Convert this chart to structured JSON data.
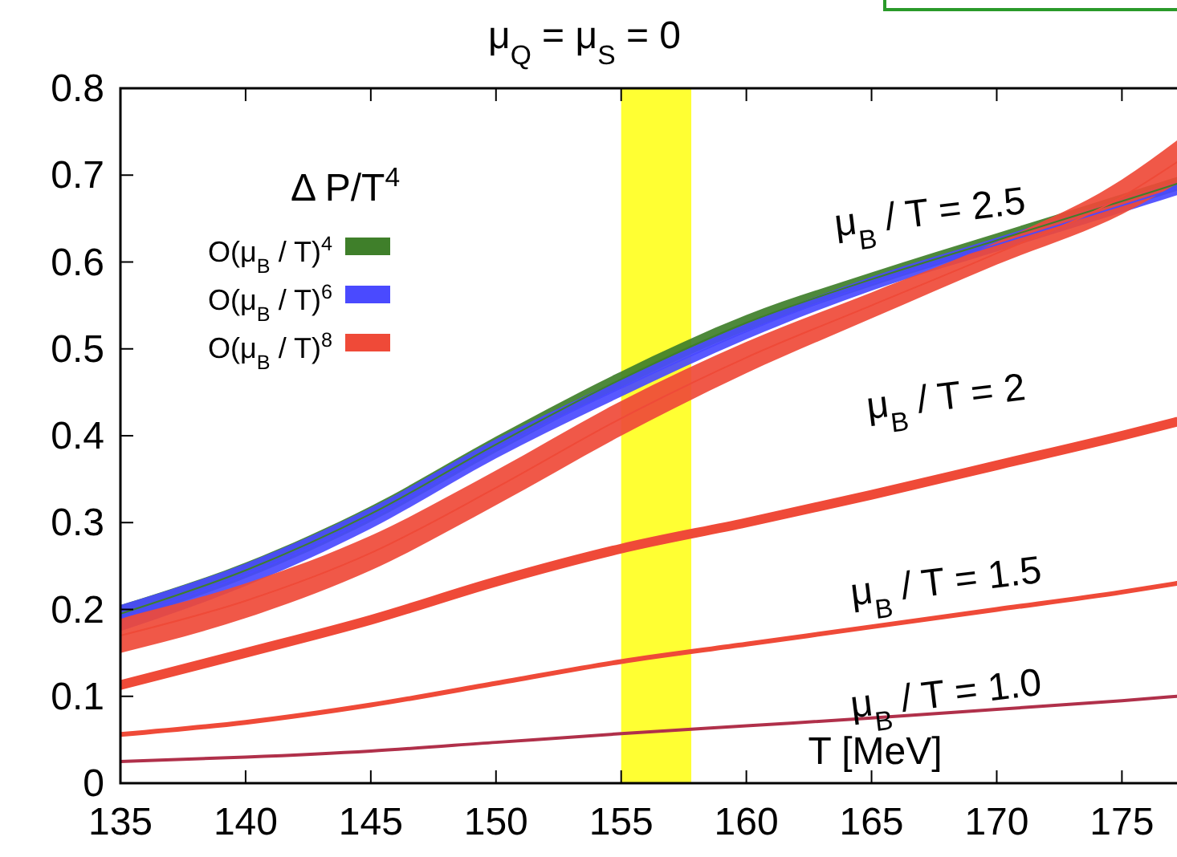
{
  "chart_data": {
    "type": "line",
    "title": "μ$_{Q}$ = μ$_{S}$ = 0",
    "xlabel": "T [MeV]",
    "legend_title": "Δ P/T$^{4}$",
    "legend": "top left",
    "grid": false,
    "marker": "none",
    "line_style": "solid",
    "x": [
      135,
      140,
      145,
      150,
      155,
      160,
      165,
      170,
      175,
      177.2
    ],
    "xlim": [
      135,
      177.2
    ],
    "xticks": [
      135,
      140,
      145,
      150,
      155,
      160,
      165,
      170,
      175
    ],
    "ylim": [
      0,
      0.8
    ],
    "yticks": [
      0,
      0.1,
      0.2,
      0.3,
      0.4,
      0.5,
      0.6,
      0.7,
      0.8
    ],
    "bands": [
      {
        "axis": "x",
        "from": 155,
        "to": 157.8,
        "color": "#ffff33"
      }
    ],
    "series": [
      {
        "name": "O(μ$_{B}$ / T)$^{4}$",
        "color": "#3f7f2a",
        "values": [
          0.195,
          0.245,
          0.31,
          0.39,
          0.465,
          0.53,
          0.58,
          0.625,
          0.67,
          0.69
        ],
        "lower": [
          0.185,
          0.236,
          0.301,
          0.381,
          0.456,
          0.521,
          0.572,
          0.617,
          0.662,
          0.682
        ],
        "upper": [
          0.205,
          0.254,
          0.319,
          0.399,
          0.474,
          0.539,
          0.588,
          0.633,
          0.678,
          0.698
        ]
      },
      {
        "name": "O(μ$_{B}$ / T)$^{6}$",
        "color": "#4a4aff",
        "values": [
          0.19,
          0.24,
          0.305,
          0.385,
          0.455,
          0.52,
          0.575,
          0.62,
          0.665,
          0.685
        ],
        "lower": [
          0.175,
          0.227,
          0.293,
          0.374,
          0.445,
          0.511,
          0.567,
          0.612,
          0.657,
          0.677
        ],
        "upper": [
          0.205,
          0.253,
          0.317,
          0.396,
          0.465,
          0.529,
          0.583,
          0.628,
          0.673,
          0.693
        ]
      },
      {
        "name": "O(μ$_{B}$ / T)$^{8}$",
        "color": "#ef4a38",
        "values": [
          0.17,
          0.21,
          0.265,
          0.34,
          0.42,
          0.49,
          0.55,
          0.61,
          0.675,
          0.715
        ],
        "lower": [
          0.15,
          0.19,
          0.245,
          0.32,
          0.4,
          0.472,
          0.535,
          0.597,
          0.655,
          0.69
        ],
        "upper": [
          0.19,
          0.23,
          0.285,
          0.36,
          0.44,
          0.508,
          0.565,
          0.623,
          0.695,
          0.74
        ]
      },
      {
        "color": "#ef4a38",
        "values": [
          0.113,
          0.15,
          0.188,
          0.232,
          0.27,
          0.3,
          0.332,
          0.366,
          0.4,
          0.416
        ]
      },
      {
        "color": "#ef4a38",
        "values": [
          0.056,
          0.07,
          0.09,
          0.115,
          0.14,
          0.16,
          0.18,
          0.2,
          0.22,
          0.23
        ]
      },
      {
        "color": "#b0304a",
        "values": [
          0.025,
          0.03,
          0.037,
          0.047,
          0.057,
          0.066,
          0.075,
          0.085,
          0.095,
          0.1
        ]
      }
    ],
    "annotations": [
      "μ$_{B}$ / T = 2.5",
      "μ$_{B}$ / T = 2",
      "μ$_{B}$ / T = 1.5",
      "μ$_{B}$ / T = 1.0"
    ]
  }
}
